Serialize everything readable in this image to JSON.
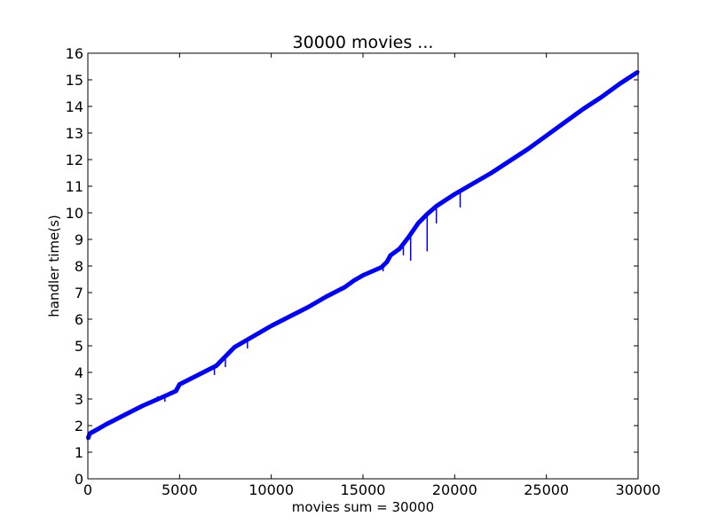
{
  "chart_data": {
    "type": "line",
    "title": "30000 movies ...",
    "xlabel": "movies sum = 30000",
    "ylabel": "handler time(s)",
    "xlim": [
      0,
      30000
    ],
    "ylim": [
      0,
      16
    ],
    "x_ticks": [
      "0",
      "5000",
      "10000",
      "15000",
      "20000",
      "25000",
      "30000"
    ],
    "y_ticks": [
      "0",
      "1",
      "2",
      "3",
      "4",
      "5",
      "6",
      "7",
      "8",
      "9",
      "10",
      "11",
      "12",
      "13",
      "14",
      "15",
      "16"
    ],
    "grid": false,
    "series_color": "#0000ff",
    "series": [
      {
        "x": [
          0,
          100,
          500,
          1000,
          2000,
          3000,
          4000,
          4800,
          5000,
          6000,
          7000,
          7500,
          8000,
          9000,
          10000,
          11000,
          12000,
          13000,
          14000,
          14500,
          15000,
          16000,
          16300,
          16500,
          17000,
          17500,
          18000,
          18500,
          19000,
          20000,
          21000,
          22000,
          23000,
          24000,
          25000,
          26000,
          27000,
          28000,
          29000,
          30000
        ],
        "y": [
          1.5,
          1.7,
          1.85,
          2.05,
          2.4,
          2.75,
          3.05,
          3.3,
          3.55,
          3.9,
          4.25,
          4.6,
          4.95,
          5.35,
          5.75,
          6.1,
          6.45,
          6.85,
          7.2,
          7.45,
          7.65,
          7.95,
          8.15,
          8.4,
          8.65,
          9.1,
          9.6,
          9.95,
          10.25,
          10.7,
          11.1,
          11.5,
          11.95,
          12.4,
          12.9,
          13.4,
          13.9,
          14.35,
          14.85,
          15.3
        ]
      }
    ],
    "dips": [
      {
        "x": 3800,
        "y": 3.1
      },
      {
        "x": 4200,
        "y": 2.9
      },
      {
        "x": 6900,
        "y": 3.9
      },
      {
        "x": 7500,
        "y": 4.2
      },
      {
        "x": 8700,
        "y": 4.9
      },
      {
        "x": 16100,
        "y": 7.8
      },
      {
        "x": 17200,
        "y": 8.4
      },
      {
        "x": 17600,
        "y": 8.2
      },
      {
        "x": 18500,
        "y": 8.55
      },
      {
        "x": 19000,
        "y": 9.6
      },
      {
        "x": 20300,
        "y": 10.2
      }
    ]
  }
}
